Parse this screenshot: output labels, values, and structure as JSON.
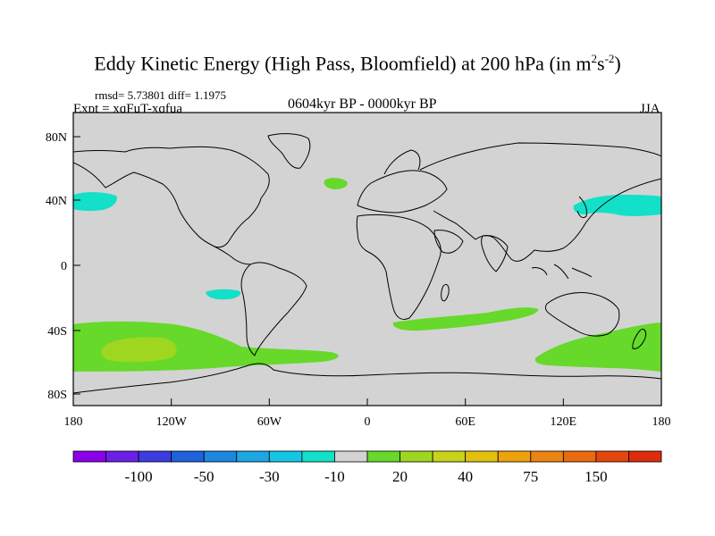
{
  "title_main": "Eddy Kinetic Energy (High Pass, Bloomfield) at 200 hPa (in m",
  "title_sup1": "2",
  "title_mid": "s",
  "title_sup2": "-2",
  "title_end": ")",
  "stats": "rmsd= 5.73801 diff= 1.1975",
  "experiment": "Expt = xqFuT-xqfua",
  "period": "0604kyr BP - 0000kyr BP",
  "season": "JJA",
  "chart_data": {
    "type": "heatmap",
    "variable": "Eddy kinetic energy difference at 200 hPa",
    "units": "m^2 s^-2",
    "x_ticks": [
      "180",
      "120W",
      "60W",
      "0",
      "60E",
      "120E",
      "180"
    ],
    "y_ticks": [
      "80N",
      "40N",
      "0",
      "40S",
      "80S"
    ],
    "lon_range": [
      -180,
      180
    ],
    "lat_range": [
      -90,
      90
    ],
    "colorbar": {
      "colors": [
        "#8B00E8",
        "#6A1FE6",
        "#3D3CE0",
        "#1F62DC",
        "#1E86E0",
        "#1CA6E2",
        "#14C6E4",
        "#12E0C8",
        "#D3D3D3",
        "#66D92A",
        "#9FD620",
        "#C9D31A",
        "#E3C00E",
        "#EDA20C",
        "#EC8411",
        "#E96A10",
        "#E4470E",
        "#DD2C0B"
      ],
      "labels": [
        "-100",
        "-50",
        "-30",
        "-10",
        "20",
        "40",
        "75",
        "150"
      ]
    },
    "regions": [
      {
        "name": "n-pacific-east",
        "value_class": -10,
        "color": "#12E0C8",
        "lon_center": -170,
        "lat_center": 40
      },
      {
        "name": "n-pacific-west",
        "value_class": -10,
        "color": "#12E0C8",
        "lon_center": 158,
        "lat_center": 38
      },
      {
        "name": "s-pacific-subtropics",
        "value_class": -10,
        "color": "#12E0C8",
        "lon_center": -95,
        "lat_center": -18
      },
      {
        "name": "n-atlantic",
        "value_class": 20,
        "color": "#66D92A",
        "lon_center": -20,
        "lat_center": 50
      },
      {
        "name": "s-pacific-storm-track",
        "value_class": 20,
        "color": "#66D92A",
        "lon_center": -120,
        "lat_center": -52
      },
      {
        "name": "s-pacific-core",
        "value_class": 40,
        "color": "#9FD620",
        "lon_center": -132,
        "lat_center": -50
      },
      {
        "name": "s-indian-ocean",
        "value_class": 20,
        "color": "#66D92A",
        "lon_center": 60,
        "lat_center": -35
      },
      {
        "name": "australia-nz",
        "value_class": 20,
        "color": "#66D92A",
        "lon_center": 155,
        "lat_center": -50
      }
    ]
  }
}
